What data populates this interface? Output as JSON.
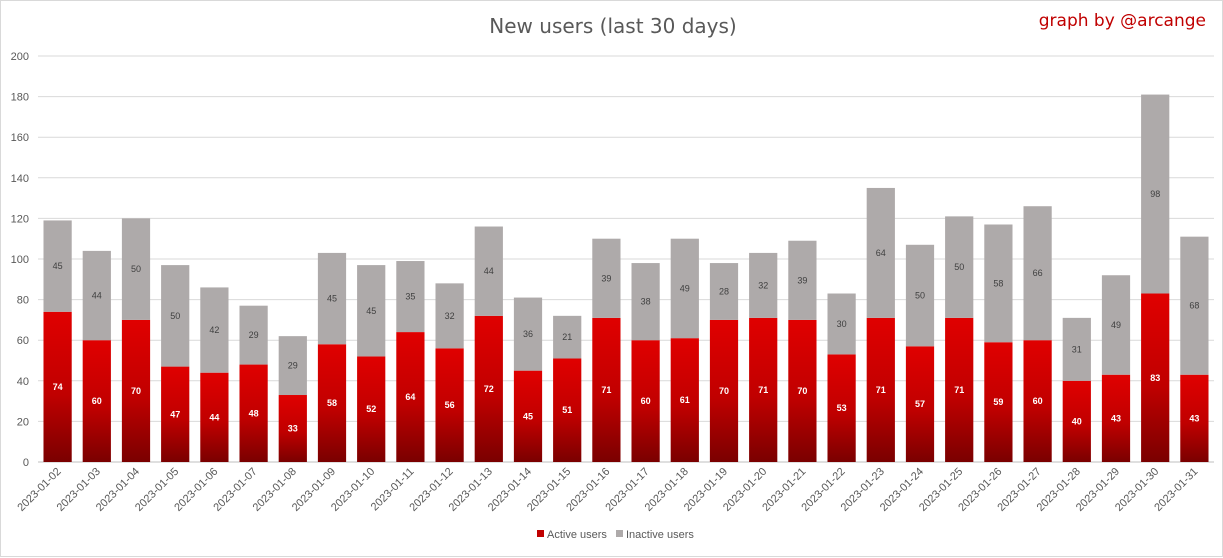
{
  "chart_data": {
    "type": "bar",
    "stacked": true,
    "title": "New users (last 30 days)",
    "credit": "graph by @arcange",
    "ylim": [
      0,
      200
    ],
    "yticks": [
      0,
      20,
      40,
      60,
      80,
      100,
      120,
      140,
      160,
      180,
      200
    ],
    "grid": true,
    "legend_position": "bottom",
    "categories": [
      "2023-01-02",
      "2023-01-03",
      "2023-01-04",
      "2023-01-05",
      "2023-01-06",
      "2023-01-07",
      "2023-01-08",
      "2023-01-09",
      "2023-01-10",
      "2023-01-11",
      "2023-01-12",
      "2023-01-13",
      "2023-01-14",
      "2023-01-15",
      "2023-01-16",
      "2023-01-17",
      "2023-01-18",
      "2023-01-19",
      "2023-01-20",
      "2023-01-21",
      "2023-01-22",
      "2023-01-23",
      "2023-01-24",
      "2023-01-25",
      "2023-01-26",
      "2023-01-27",
      "2023-01-28",
      "2023-01-29",
      "2023-01-30",
      "2023-01-31"
    ],
    "series": [
      {
        "name": "Active users",
        "color": "#c00000",
        "values": [
          74,
          60,
          70,
          47,
          44,
          48,
          33,
          58,
          52,
          64,
          56,
          72,
          45,
          51,
          71,
          60,
          61,
          70,
          71,
          70,
          53,
          71,
          57,
          71,
          59,
          60,
          40,
          43,
          83,
          43
        ]
      },
      {
        "name": "Inactive users",
        "color": "#aeaaaa",
        "values": [
          45,
          44,
          50,
          50,
          42,
          29,
          29,
          45,
          45,
          35,
          32,
          44,
          36,
          21,
          39,
          38,
          49,
          28,
          32,
          39,
          30,
          64,
          50,
          50,
          58,
          66,
          31,
          49,
          98,
          68
        ]
      }
    ]
  }
}
